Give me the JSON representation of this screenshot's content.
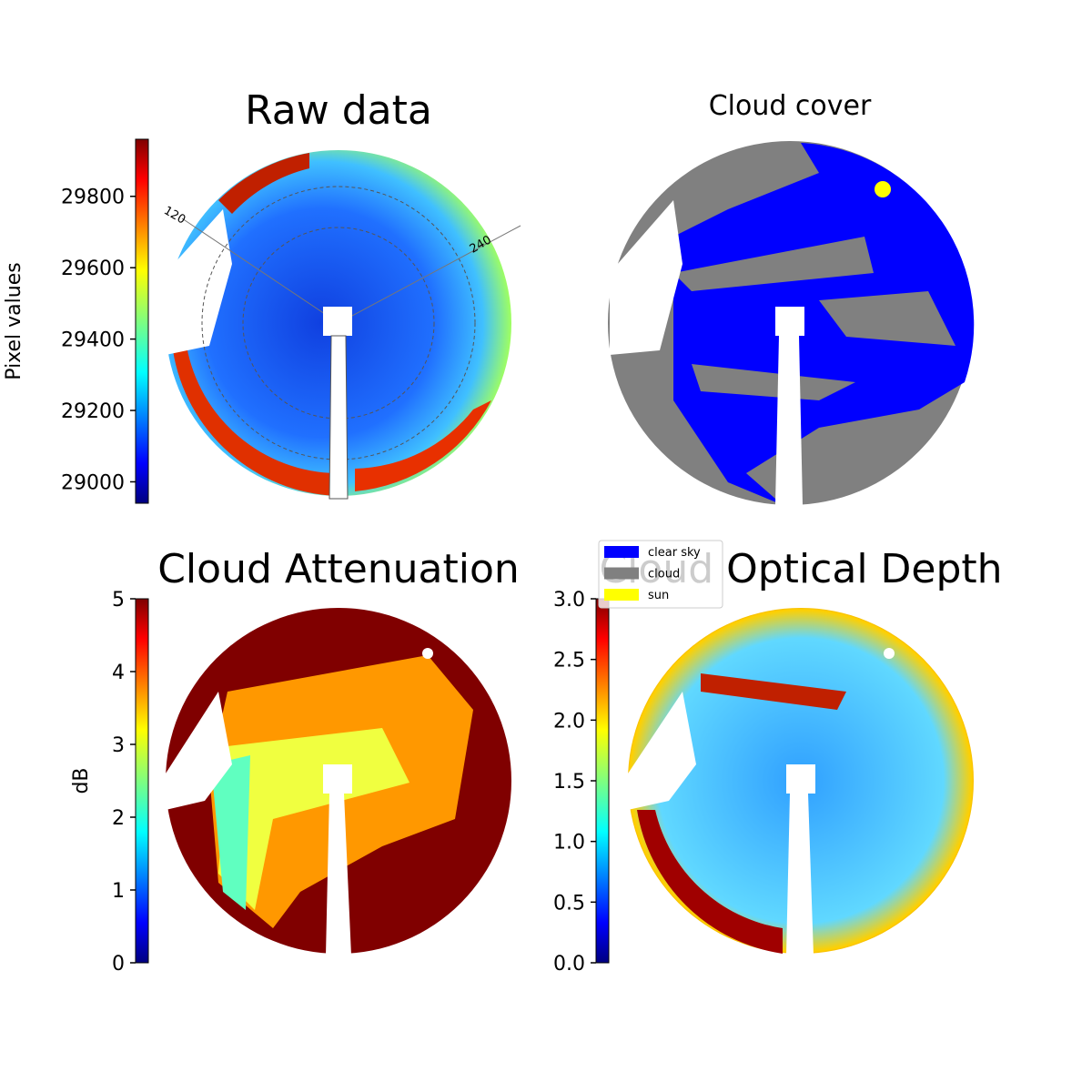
{
  "panels": [
    {
      "title": "Raw data",
      "colorbar": {
        "label": "Pixel values",
        "lim": [
          28940,
          29960
        ],
        "ticks": [
          29000,
          29200,
          29400,
          29600,
          29800
        ]
      },
      "polar_labels": [
        "120",
        "240"
      ]
    },
    {
      "title": "Cloud cover",
      "legend": [
        {
          "name": "clear sky",
          "color": "#0000ff"
        },
        {
          "name": "cloud",
          "color": "#808080"
        },
        {
          "name": "sun",
          "color": "#ffff00"
        }
      ]
    },
    {
      "title": "Cloud Attenuation",
      "colorbar": {
        "label": "dB",
        "lim": [
          0,
          5
        ],
        "ticks": [
          0,
          1,
          2,
          3,
          4,
          5
        ]
      }
    },
    {
      "title": "Cloud Optical Depth",
      "colorbar": {
        "lim": [
          0,
          3
        ],
        "ticks": [
          {
            "value": 0,
            "label": "0.0"
          },
          {
            "value": 0.5,
            "label": "0.5"
          },
          {
            "value": 1,
            "label": "1.0"
          },
          {
            "value": 1.5,
            "label": "1.5"
          },
          {
            "value": 2,
            "label": "2.0"
          },
          {
            "value": 2.5,
            "label": "2.5"
          },
          {
            "value": 3,
            "label": "3.0"
          }
        ]
      }
    }
  ]
}
